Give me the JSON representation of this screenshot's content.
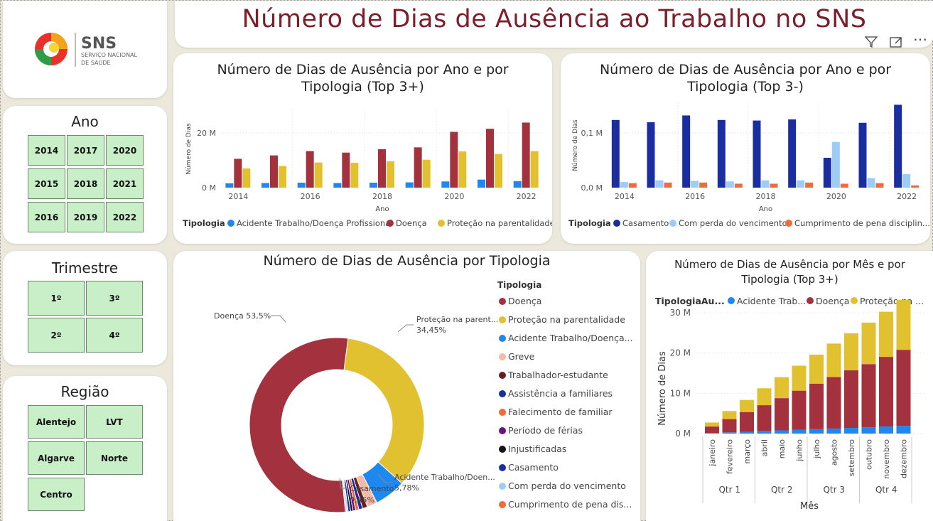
{
  "title": "Número de Dias de Ausência ao Trabalho no SNS",
  "logo": {
    "main": "SNS",
    "sub1": "SERVIÇO NACIONAL",
    "sub2": "DE SAÚDE"
  },
  "slicers": {
    "ano": {
      "title": "Ano",
      "items": [
        "2014",
        "2017",
        "2020",
        "2015",
        "2018",
        "2021",
        "2016",
        "2019",
        "2022"
      ]
    },
    "trimestre": {
      "title": "Trimestre",
      "items": [
        "1º",
        "3º",
        "2º",
        "4º"
      ]
    },
    "regiao": {
      "title": "Região",
      "items": [
        "Alentejo",
        "LVT",
        "Algarve",
        "Norte",
        "Centro"
      ]
    }
  },
  "toolbar": {
    "filter_icon": "filter-icon",
    "focus_icon": "focus-mode-icon",
    "more_icon": "more-options-icon"
  },
  "chart1": {
    "title1": "Número de Dias de Ausência por Ano e por",
    "title2": "Tipologia (Top 3+)",
    "ylabel": "Número de Dias",
    "xlabel": "Ano",
    "legend_title": "Tipologia",
    "yticks": [
      "20 M",
      "0 M"
    ],
    "xticks": [
      "2014",
      "2016",
      "2018",
      "2020",
      "2022"
    ]
  },
  "chart2": {
    "title1": "Número de Dias de Ausência por Ano e por",
    "title2": "Tipologia (Top 3-)",
    "ylabel": "Número de Dias",
    "xlabel": "Ano",
    "legend_title": "Tipologia",
    "yticks": [
      "0,1 M",
      "0,0 M"
    ],
    "xticks": [
      "2014",
      "2016",
      "2018",
      "2020",
      "2022"
    ]
  },
  "chart3": {
    "title": "Número de Dias de Ausência por Tipologia",
    "legend_title": "Tipologia",
    "legend": [
      "Doença",
      "Proteção na parentalidade",
      "Acidente Trabalho/Doença...",
      "Greve",
      "Trabalhador-estudante",
      "Assistência a familiares",
      "Falecimento de familiar",
      "Período de férias",
      "Injustificadas",
      "Casamento",
      "Com perda do vencimento",
      "Cumprimento de pena dis..."
    ],
    "labels": {
      "doenca": "Doença 53,5%",
      "protecao1": "Proteção na parent...",
      "protecao2": "34,45%",
      "acidente1": "Acidente Trabalho/Doen...",
      "acidente2": "5,78%",
      "casamento1": "Casamento",
      "casamento2": "0,45%"
    }
  },
  "chart4": {
    "title1": "Número de Dias de Ausência por Mês e por",
    "title2": "Tipologia (Top 3+)",
    "legend_title": "TipologiaAu...",
    "legend": [
      "Acidente Trab...",
      "Doença",
      "Proteção na ..."
    ],
    "ylabel": "Número de Dias",
    "xlabel": "Mês",
    "yticks": [
      "30 M",
      "20 M",
      "10 M",
      "0 M"
    ],
    "quarters": [
      "Qtr 1",
      "Qtr 2",
      "Qtr 3",
      "Qtr 4"
    ]
  },
  "chart_data": [
    {
      "type": "bar",
      "title": "Número de Dias de Ausência por Ano e por Tipologia (Top 3+)",
      "xlabel": "Ano",
      "ylabel": "Número de Dias",
      "ylim": [
        0,
        25
      ],
      "categories": [
        "2014",
        "2015",
        "2016",
        "2017",
        "2018",
        "2019",
        "2020",
        "2021",
        "2022"
      ],
      "series": [
        {
          "name": "Acidente Trabalho/Doença Profissional",
          "color": "#1e88f0",
          "values": [
            1.4,
            1.5,
            1.6,
            1.5,
            1.6,
            1.7,
            2.0,
            2.6,
            2.1
          ]
        },
        {
          "name": "Doença",
          "color": "#a3323e",
          "values": [
            9.3,
            10.4,
            11.8,
            11.3,
            12.4,
            13.0,
            18.0,
            19.0,
            21.0
          ]
        },
        {
          "name": "Proteção na parentalidade",
          "color": "#e2c130",
          "values": [
            6.2,
            7.0,
            8.1,
            8.0,
            8.5,
            9.0,
            11.7,
            10.9,
            11.8
          ]
        }
      ]
    },
    {
      "type": "bar",
      "title": "Número de Dias de Ausência por Ano e por Tipologia (Top 3-)",
      "xlabel": "Ano",
      "ylabel": "Número de Dias",
      "ylim": [
        0,
        0.15
      ],
      "categories": [
        "2014",
        "2015",
        "2016",
        "2017",
        "2018",
        "2019",
        "2020",
        "2021",
        "2022"
      ],
      "series": [
        {
          "name": "Casamento",
          "color": "#1a2ea0",
          "values": [
            0.12,
            0.116,
            0.128,
            0.12,
            0.119,
            0.121,
            0.053,
            0.115,
            0.147
          ]
        },
        {
          "name": "Com perda do vencimento",
          "color": "#9dcdf7",
          "values": [
            0.01,
            0.013,
            0.012,
            0.011,
            0.013,
            0.013,
            0.081,
            0.017,
            0.024
          ]
        },
        {
          "name": "Cumprimento de pena disciplin...",
          "color": "#ef6b3a",
          "values": [
            0.008,
            0.009,
            0.009,
            0.007,
            0.007,
            0.009,
            0.007,
            0.008,
            0.004
          ]
        }
      ]
    },
    {
      "type": "pie",
      "title": "Número de Dias de Ausência por Tipologia",
      "categories": [
        "Doença",
        "Proteção na parentalidade",
        "Acidente Trabalho/Doença Profissional",
        "Greve",
        "Trabalhador-estudante",
        "Assistência a familiares",
        "Falecimento de familiar",
        "Período de férias",
        "Injustificadas",
        "Casamento",
        "Com perda do vencimento",
        "Cumprimento de pena disciplinar"
      ],
      "values": [
        53.5,
        34.45,
        5.78,
        1.9,
        0.9,
        0.7,
        0.6,
        0.5,
        0.45,
        0.45,
        0.3,
        0.2
      ],
      "colors": [
        "#a3323e",
        "#e2c130",
        "#1e88f0",
        "#f3bba6",
        "#6b1e22",
        "#1a2ea0",
        "#ef6b3a",
        "#6e0f84",
        "#141414",
        "#1a2ea0",
        "#9dcdf7",
        "#ef6b3a"
      ]
    },
    {
      "type": "bar",
      "title": "Número de Dias de Ausência por Mês e por Tipologia (Top 3+)",
      "xlabel": "Mês",
      "ylabel": "Número de Dias",
      "ylim": [
        0,
        33
      ],
      "categories": [
        "janeiro",
        "fevereiro",
        "março",
        "abril",
        "maio",
        "junho",
        "julho",
        "agosto",
        "setembro",
        "outubro",
        "novembro",
        "dezembro"
      ],
      "series": [
        {
          "name": "Acidente Trab...",
          "color": "#1e88f0",
          "values": [
            0.15,
            0.3,
            0.45,
            0.65,
            0.8,
            0.95,
            1.1,
            1.25,
            1.4,
            1.55,
            1.75,
            1.9
          ]
        },
        {
          "name": "Doença",
          "color": "#a3323e",
          "values": [
            1.6,
            3.3,
            4.9,
            6.4,
            8.0,
            9.7,
            11.3,
            12.8,
            14.3,
            15.7,
            17.3,
            18.9
          ]
        },
        {
          "name": "Proteção na ...",
          "color": "#e2c130",
          "values": [
            1.0,
            2.0,
            3.0,
            4.2,
            5.2,
            6.2,
            7.2,
            8.3,
            9.2,
            10.3,
            11.2,
            12.4
          ]
        }
      ]
    }
  ]
}
